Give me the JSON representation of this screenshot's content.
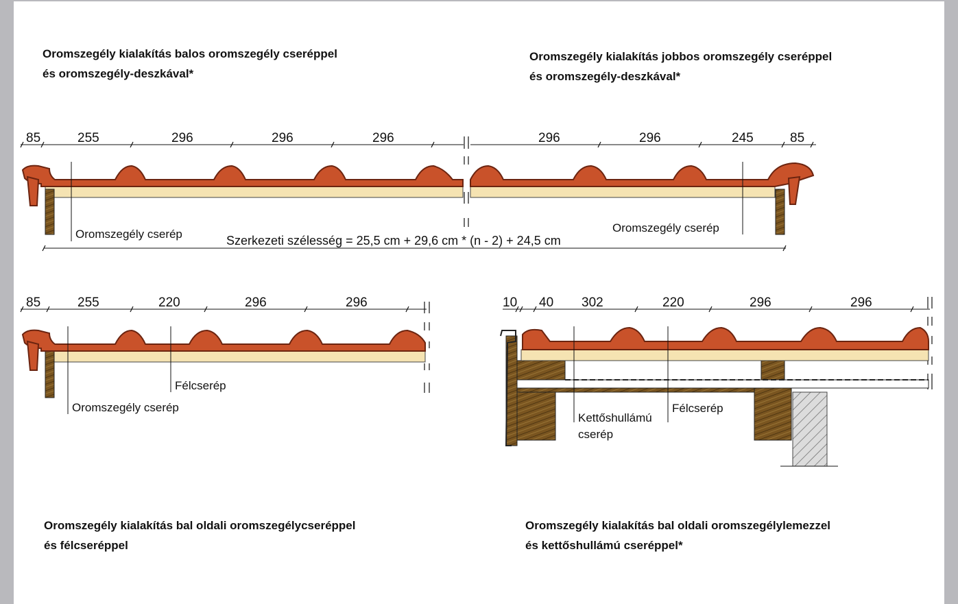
{
  "titles": {
    "tl": {
      "line1": "Oromszegély kialakítás balos oromszegély cseréppel",
      "line2": "és oromszegély-deszkával*"
    },
    "tr": {
      "line1": "Oromszegély kialakítás jobbos oromszegély cseréppel",
      "line2": "és oromszegély-deszkával*"
    },
    "bl": {
      "line1": "Oromszegély kialakítás bal oldali oromszegélycseréppel",
      "line2": "és félcseréppel"
    },
    "br": {
      "line1": "Oromszegély kialakítás bal oldali oromszegélylemezzel",
      "line2": "és kettőshullámú cseréppel*"
    }
  },
  "diagram1": {
    "dims_left": [
      "85",
      "255",
      "296",
      "296",
      "296"
    ],
    "dims_right": [
      "296",
      "296",
      "245",
      "85"
    ],
    "label_left": "Oromszegély cserép",
    "label_right": "Oromszegély cserép",
    "formula": "Szerkezeti szélesség = 25,5 cm + 29,6 cm * (n - 2) + 24,5 cm"
  },
  "diagram2": {
    "dims": [
      "85",
      "255",
      "220",
      "296",
      "296"
    ],
    "label_half": "Félcserép",
    "label_verge": "Oromszegély cserép"
  },
  "diagram3": {
    "dims": [
      "10",
      "40",
      "302",
      "220",
      "296",
      "296"
    ],
    "label_double_1": "Kettőshullámú",
    "label_double_2": "cserép",
    "label_half": "Félcserép"
  },
  "colors": {
    "tile": "#c9522a",
    "tile_dark": "#7a2a12",
    "batten": "#f5e3b2",
    "wood": "#7a5520",
    "wall_hatch": "#8a8a8a"
  }
}
